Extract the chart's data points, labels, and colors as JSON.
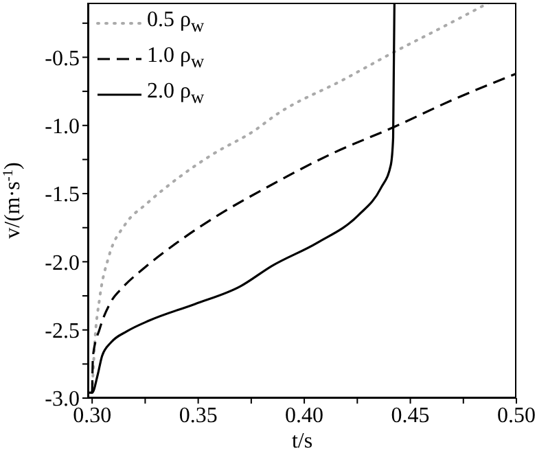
{
  "chart_data": {
    "type": "line",
    "xlabel": "t/s",
    "ylabel": "v/(m·s$^{-1}$)",
    "xlim": [
      0.298,
      0.5
    ],
    "ylim": [
      -3.0,
      -0.1
    ],
    "xticks": [
      {
        "value": 0.3,
        "label": "0.30"
      },
      {
        "value": 0.325,
        "label": null
      },
      {
        "value": 0.35,
        "label": "0.35"
      },
      {
        "value": 0.375,
        "label": null
      },
      {
        "value": 0.4,
        "label": "0.40"
      },
      {
        "value": 0.425,
        "label": null
      },
      {
        "value": 0.45,
        "label": "0.45"
      },
      {
        "value": 0.475,
        "label": null
      },
      {
        "value": 0.5,
        "label": "0.50"
      }
    ],
    "yticks": [
      {
        "value": -3.0,
        "label": "-3.0"
      },
      {
        "value": -2.75,
        "label": null
      },
      {
        "value": -2.5,
        "label": "-2.5"
      },
      {
        "value": -2.25,
        "label": null
      },
      {
        "value": -2.0,
        "label": "-2.0"
      },
      {
        "value": -1.75,
        "label": null
      },
      {
        "value": -1.5,
        "label": "-1.5"
      },
      {
        "value": -1.25,
        "label": null
      },
      {
        "value": -1.0,
        "label": "-1.0"
      },
      {
        "value": -0.75,
        "label": null
      },
      {
        "value": -0.5,
        "label": "-0.5"
      },
      {
        "value": -0.25,
        "label": null
      }
    ],
    "legend": "top left",
    "grid": false,
    "marker": "none",
    "series": [
      {
        "name": "0.5 ρ$_{w}$",
        "color": "#aaaaaa",
        "line_style": "dotted",
        "x": [
          0.3,
          0.3012,
          0.3036,
          0.3079,
          0.3154,
          0.326,
          0.341,
          0.357,
          0.3763,
          0.3869,
          0.419,
          0.4425,
          0.4638,
          0.487
        ],
        "values": [
          -2.96,
          -2.6,
          -2.26,
          -1.96,
          -1.73,
          -1.57,
          -1.38,
          -1.21,
          -1.04,
          -0.92,
          -0.66,
          -0.46,
          -0.29,
          -0.1
        ]
      },
      {
        "name": "1.0 ρ$_{w}$",
        "color": "#000000",
        "line_style": "dashed",
        "x": [
          0.3,
          0.3004,
          0.3036,
          0.309,
          0.3143,
          0.325,
          0.34,
          0.3592,
          0.3805,
          0.4126,
          0.4425,
          0.4703,
          0.5
        ],
        "values": [
          -2.96,
          -2.69,
          -2.49,
          -2.29,
          -2.19,
          -2.04,
          -1.86,
          -1.66,
          -1.47,
          -1.21,
          -1.01,
          -0.81,
          -0.62
        ]
      },
      {
        "name": "2.0 ρ$_{w}$",
        "color": "#000000",
        "line_style": "solid",
        "x": [
          0.298,
          0.3,
          0.3026,
          0.3047,
          0.309,
          0.3164,
          0.3271,
          0.3485,
          0.3699,
          0.3848,
          0.4062,
          0.4254,
          0.4361,
          0.4408,
          0.4419,
          0.4425
        ],
        "values": [
          -2.96,
          -2.96,
          -2.83,
          -2.69,
          -2.59,
          -2.51,
          -2.43,
          -2.31,
          -2.18,
          -2.03,
          -1.86,
          -1.66,
          -1.46,
          -1.29,
          -1.09,
          -0.1
        ]
      }
    ]
  }
}
